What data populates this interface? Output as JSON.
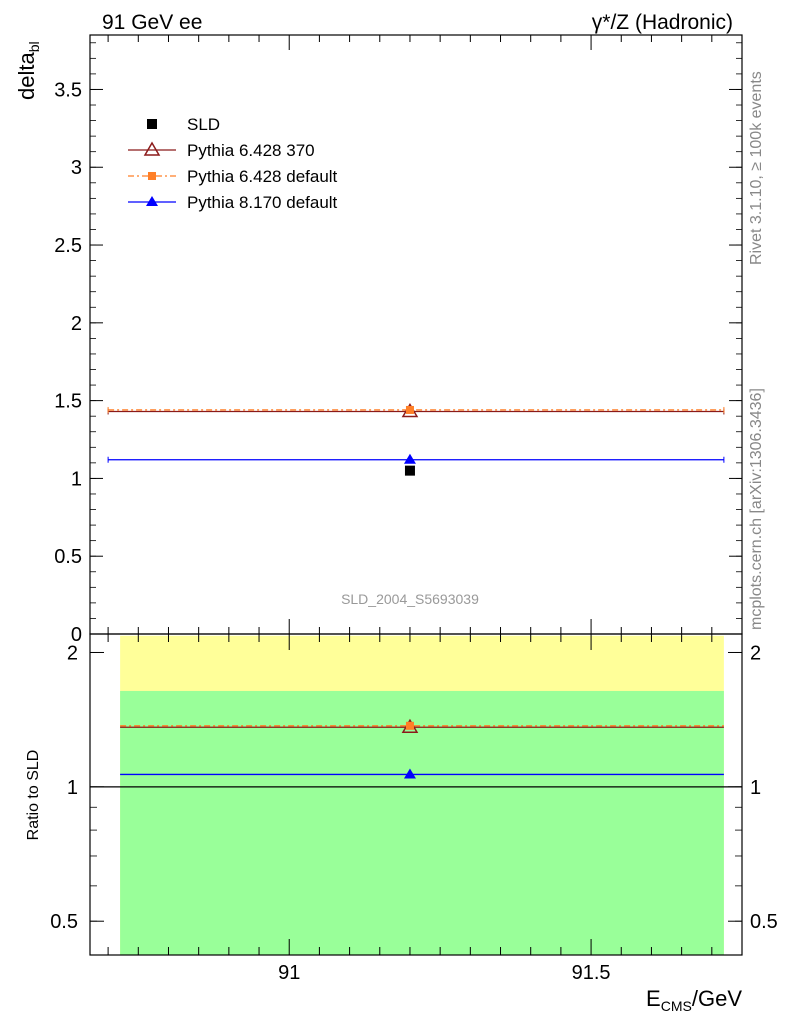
{
  "header": {
    "left": "91 GeV ee",
    "right": "γ*/Z (Hadronic)"
  },
  "side_text": {
    "rivet": "Rivet 3.1.10, ≥ 100k events",
    "mcplots": "mcplots.cern.ch [arXiv:1306.3436]"
  },
  "watermark": "SLD_2004_S5693039",
  "colors": {
    "sld": "#000000",
    "p6_370": "#8b1a1a",
    "p6_default": "#ff7f27",
    "p8_default": "#0000ff",
    "band_outer": "#ffff99",
    "band_inner": "#99ff99"
  },
  "chart_data": [
    {
      "type": "scatter",
      "panel": "main",
      "ylabel_main": "delta",
      "ylabel_sub": "bl",
      "xlim": [
        90.67,
        91.75
      ],
      "ylim": [
        0,
        3.85
      ],
      "yticks": [
        "0",
        "0.5",
        "1",
        "1.5",
        "2",
        "2.5",
        "3",
        "3.5"
      ],
      "ytick_values": [
        0,
        0.5,
        1,
        1.5,
        2,
        2.5,
        3,
        3.5
      ],
      "x_range": [
        90.7,
        91.72
      ],
      "x_center": 91.2,
      "series": [
        {
          "key": "sld",
          "name": "SLD",
          "marker": "square",
          "x": 91.2,
          "y": 1.05,
          "err": 0.0
        },
        {
          "key": "p6_370",
          "name": "Pythia 6.428 370",
          "marker": "triangle-open",
          "x": 91.2,
          "y": 1.43
        },
        {
          "key": "p6_default",
          "name": "Pythia 6.428 default",
          "marker": "square-small",
          "x": 91.2,
          "y": 1.44
        },
        {
          "key": "p8_default",
          "name": "Pythia 8.170 default",
          "marker": "triangle",
          "x": 91.2,
          "y": 1.12
        }
      ],
      "legend_position": "top-left"
    },
    {
      "type": "scatter",
      "panel": "ratio",
      "ylabel": "Ratio to SLD",
      "log_y": true,
      "ylim": [
        0.42,
        2.2
      ],
      "yticks": [
        "0.5",
        "1",
        "2"
      ],
      "ytick_values": [
        0.5,
        1,
        2
      ],
      "band_outer": [
        0.42,
        2.18
      ],
      "band_inner": [
        0.42,
        1.64
      ],
      "series": [
        {
          "key": "p6_370",
          "name": "Pythia 6.428 370",
          "y": 1.36
        },
        {
          "key": "p6_default",
          "name": "Pythia 6.428 default",
          "y": 1.37
        },
        {
          "key": "p8_default",
          "name": "Pythia 8.170 default",
          "y": 1.066
        }
      ],
      "xticks": [
        "91",
        "91.5"
      ],
      "xtick_values": [
        91,
        91.5
      ],
      "xlabel_main": "E",
      "xlabel_sub": "CMS",
      "xlabel_tail": "/GeV"
    }
  ]
}
